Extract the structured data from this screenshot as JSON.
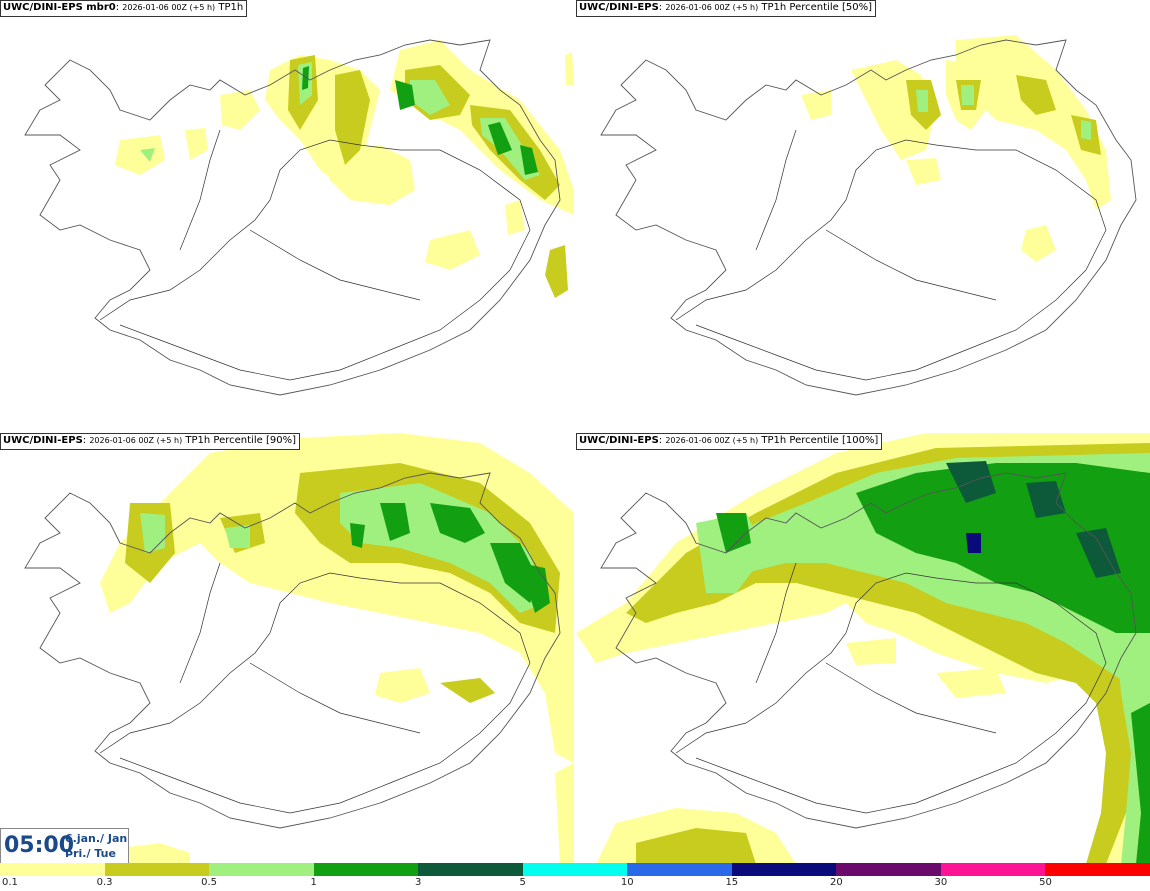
{
  "panels": [
    {
      "model": "UWC/DINI-EPS mbr0",
      "run": "2026-01-06 00Z (+5 h)",
      "param": "TP1h"
    },
    {
      "model": "UWC/DINI-EPS",
      "run": "2026-01-06 00Z (+5 h)",
      "param": "TP1h Percentile [50%]"
    },
    {
      "model": "UWC/DINI-EPS",
      "run": "2026-01-06 00Z (+5 h)",
      "param": "TP1h Percentile [90%]"
    },
    {
      "model": "UWC/DINI-EPS",
      "run": "2026-01-06 00Z (+5 h)",
      "param": "TP1h Percentile [100%]"
    }
  ],
  "valid_time": {
    "time": "05:00",
    "date_line1": "6.jan./ Jan",
    "date_line2": "Þri./ Tue"
  },
  "legend": {
    "labels": [
      "0.1",
      "0.3",
      "0.5",
      "1",
      "3",
      "5",
      "10",
      "15",
      "20",
      "30",
      "50"
    ],
    "colors": [
      "#ffff99",
      "#c8cc1e",
      "#a0f080",
      "#12a012",
      "#0d5a3a",
      "#00ffee",
      "#2a6ae8",
      "#0a0a7a",
      "#6a0a6a",
      "#ff1493",
      "#ff0000"
    ]
  }
}
